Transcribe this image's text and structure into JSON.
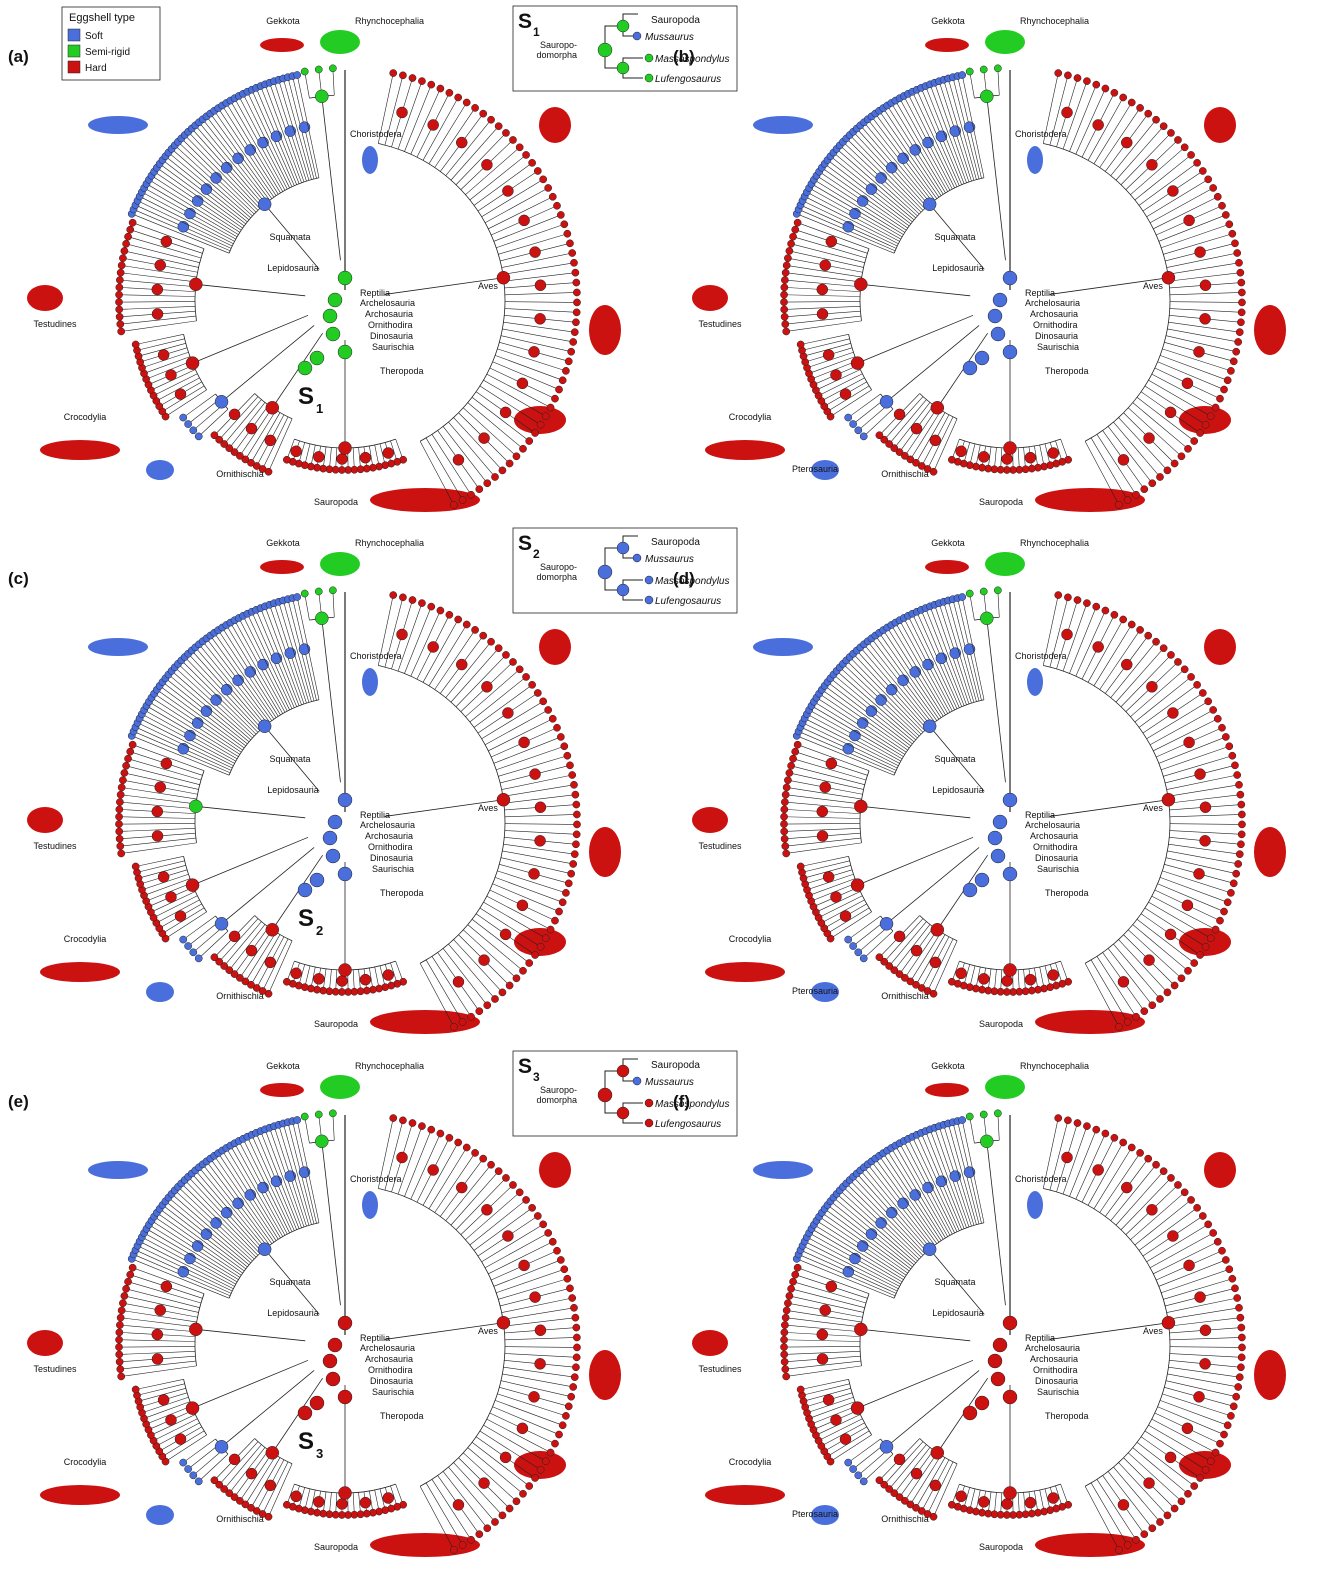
{
  "legend": {
    "title": "Eggshell type",
    "items": [
      {
        "name": "Soft",
        "color": "#4a6fdc"
      },
      {
        "name": "Semi-rigid",
        "color": "#22cc22"
      },
      {
        "name": "Hard",
        "color": "#cc1111"
      }
    ]
  },
  "panels": [
    {
      "label": "(a)",
      "backbone_color": "#22cc22",
      "clades": [
        "Gekkota",
        "Rhynchocephalia",
        "Choristodera",
        "Squamata",
        "Lepidosauria",
        "Reptilia",
        "Archelosauria",
        "Archosauria",
        "Ornithodira",
        "Dinosauria",
        "Saurischia",
        "Theropoda",
        "Aves",
        "Testudines",
        "Crocodylia",
        "Ornithischia",
        "Sauropoda"
      ],
      "node_label": {
        "letter": "S",
        "sub": "1"
      },
      "inset": {
        "letter": "S",
        "sub": "1",
        "color": "#22cc22",
        "group": [
          "Sauropo-",
          "domorpha"
        ],
        "taxa": [
          "Sauropoda",
          "Mussaurus",
          "Massospondylus",
          "Lufengosaurus"
        ]
      }
    },
    {
      "label": "(b)",
      "backbone_color": "#4a6fdc",
      "clades": [
        "Gekkota",
        "Rhynchocephalia",
        "Choristodera",
        "Squamata",
        "Lepidosauria",
        "Reptilia",
        "Archelosauria",
        "Archosauria",
        "Ornithodira",
        "Dinosauria",
        "Saurischia",
        "Theropoda",
        "Aves",
        "Testudines",
        "Crocodylia",
        "Ornithischia",
        "Sauropoda",
        "Pterosauria"
      ]
    },
    {
      "label": "(c)",
      "backbone_color": "#4a6fdc",
      "clades": [
        "Gekkota",
        "Rhynchocephalia",
        "Choristodera",
        "Squamata",
        "Lepidosauria",
        "Reptilia",
        "Archelosauria",
        "Archosauria",
        "Ornithodira",
        "Dinosauria",
        "Saurischia",
        "Theropoda",
        "Aves",
        "Testudines",
        "Crocodylia",
        "Ornithischia",
        "Sauropoda"
      ],
      "node_label": {
        "letter": "S",
        "sub": "2"
      },
      "inset": {
        "letter": "S",
        "sub": "2",
        "color": "#4a6fdc",
        "group": [
          "Sauropo-",
          "domorpha"
        ],
        "taxa": [
          "Sauropoda",
          "Mussaurus",
          "Massospondylus",
          "Lufengosaurus"
        ]
      }
    },
    {
      "label": "(d)",
      "backbone_color": "#4a6fdc",
      "clades": [
        "Gekkota",
        "Rhynchocephalia",
        "Choristodera",
        "Squamata",
        "Lepidosauria",
        "Reptilia",
        "Archelosauria",
        "Archosauria",
        "Ornithodira",
        "Dinosauria",
        "Saurischia",
        "Theropoda",
        "Aves",
        "Testudines",
        "Crocodylia",
        "Ornithischia",
        "Sauropoda",
        "Pterosauria"
      ]
    },
    {
      "label": "(e)",
      "backbone_color": "#cc1111",
      "clades": [
        "Gekkota",
        "Rhynchocephalia",
        "Choristodera",
        "Squamata",
        "Lepidosauria",
        "Reptilia",
        "Archelosauria",
        "Archosauria",
        "Ornithodira",
        "Dinosauria",
        "Saurischia",
        "Theropoda",
        "Aves",
        "Testudines",
        "Crocodylia",
        "Ornithischia",
        "Sauropoda"
      ],
      "node_label": {
        "letter": "S",
        "sub": "3"
      },
      "inset": {
        "letter": "S",
        "sub": "3",
        "color": "#cc1111",
        "group": [
          "Sauropo-",
          "domorpha"
        ],
        "taxa": [
          "Sauropoda",
          "Mussaurus",
          "Massospondylus",
          "Lufengosaurus"
        ]
      }
    },
    {
      "label": "(f)",
      "backbone_color": "#cc1111",
      "clades": [
        "Gekkota",
        "Rhynchocephalia",
        "Choristodera",
        "Squamata",
        "Lepidosauria",
        "Reptilia",
        "Archelosauria",
        "Archosauria",
        "Ornithodira",
        "Dinosauria",
        "Saurischia",
        "Theropoda",
        "Aves",
        "Testudines",
        "Crocodylia",
        "Ornithischia",
        "Sauropoda",
        "Pterosauria"
      ]
    }
  ]
}
